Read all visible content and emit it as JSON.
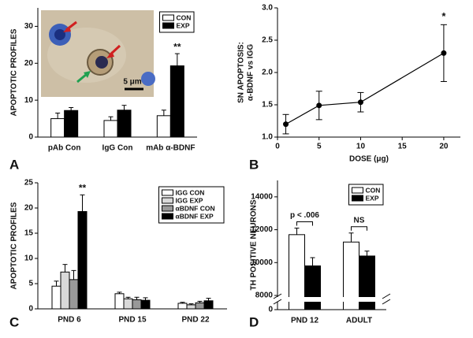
{
  "chart_data": [
    {
      "panel": "A",
      "type": "bar",
      "ylabel": "APOPTOTIC PROFILES",
      "categories": [
        "pAb Con",
        "IgG Con",
        "mAb α-BDNF"
      ],
      "series": [
        {
          "name": "CON",
          "color": "#ffffff",
          "values": [
            5,
            4.5,
            5.8
          ],
          "errors": [
            1.5,
            1,
            1.5
          ]
        },
        {
          "name": "EXP",
          "color": "#000000",
          "values": [
            7.2,
            7.3,
            19.3
          ],
          "errors": [
            0.8,
            1.3,
            3.3
          ]
        }
      ],
      "ylim": [
        0,
        35
      ],
      "yticks": [
        0,
        10,
        20,
        30
      ],
      "annotations": [
        null,
        null,
        "**"
      ],
      "legend": "top-right",
      "scale_bar_label": "5 μm"
    },
    {
      "panel": "B",
      "type": "line",
      "ylabel": [
        "SN APOPTOSIS:",
        "α-BDNF vs IGG"
      ],
      "xlabel": "DOSE (μg)",
      "x": [
        1,
        5,
        10,
        20
      ],
      "values": [
        1.2,
        1.49,
        1.54,
        2.3
      ],
      "errors": [
        0.15,
        0.22,
        0.15,
        0.44
      ],
      "color": "#000000",
      "xlim": [
        0,
        22
      ],
      "xticks": [
        0,
        5,
        10,
        15,
        20
      ],
      "ylim": [
        1,
        3
      ],
      "yticks": [
        {
          "value": 1,
          "label": "1.0"
        },
        {
          "value": 1.5,
          "label": "1.5"
        },
        {
          "value": 2,
          "label": "2.0"
        },
        {
          "value": 2.5,
          "label": "2.5"
        },
        {
          "value": 3,
          "label": "3.0"
        }
      ],
      "annotations": [
        null,
        null,
        null,
        "*"
      ]
    },
    {
      "panel": "C",
      "type": "bar",
      "ylabel": "APOPTOTIC PROFILES",
      "categories": [
        "PND 6",
        "PND 15",
        "PND 22"
      ],
      "series": [
        {
          "name": "IGG CON",
          "color": "#ffffff",
          "values": [
            4.5,
            3,
            1.1
          ],
          "errors": [
            1,
            0.3,
            0.2
          ]
        },
        {
          "name": "IGG EXP",
          "color": "#d9d9d9",
          "values": [
            7.3,
            2,
            0.8
          ],
          "errors": [
            1.5,
            0.3,
            0.2
          ]
        },
        {
          "name": "αBDNF CON",
          "color": "#999999",
          "values": [
            5.8,
            1.8,
            1.2
          ],
          "errors": [
            1.8,
            0.5,
            0.3
          ]
        },
        {
          "name": "αBDNF EXP",
          "color": "#000000",
          "values": [
            19.3,
            1.7,
            1.6
          ],
          "errors": [
            3.3,
            0.5,
            0.5
          ]
        }
      ],
      "ylim": [
        0,
        25
      ],
      "yticks": [
        0,
        5,
        10,
        15,
        20,
        25
      ],
      "annotations": [
        "**",
        null,
        null
      ],
      "legend": "top-right"
    },
    {
      "panel": "D",
      "type": "bar",
      "ylabel": "TH POSITIVE NEURONS",
      "categories": [
        "PND 12",
        "ADULT"
      ],
      "series": [
        {
          "name": "CON",
          "color": "#ffffff",
          "values": [
            11700,
            11250
          ],
          "errors": [
            400,
            550
          ]
        },
        {
          "name": "EXP",
          "color": "#000000",
          "values": [
            9800,
            10400
          ],
          "errors": [
            500,
            300
          ]
        }
      ],
      "ylim": [
        0,
        15000
      ],
      "yticks": [
        0,
        8000,
        10000,
        12000,
        14000
      ],
      "y_break": true,
      "annotations": [
        "p < .006",
        "NS"
      ],
      "annotation_style": "bracket",
      "legend": "top-right"
    }
  ]
}
